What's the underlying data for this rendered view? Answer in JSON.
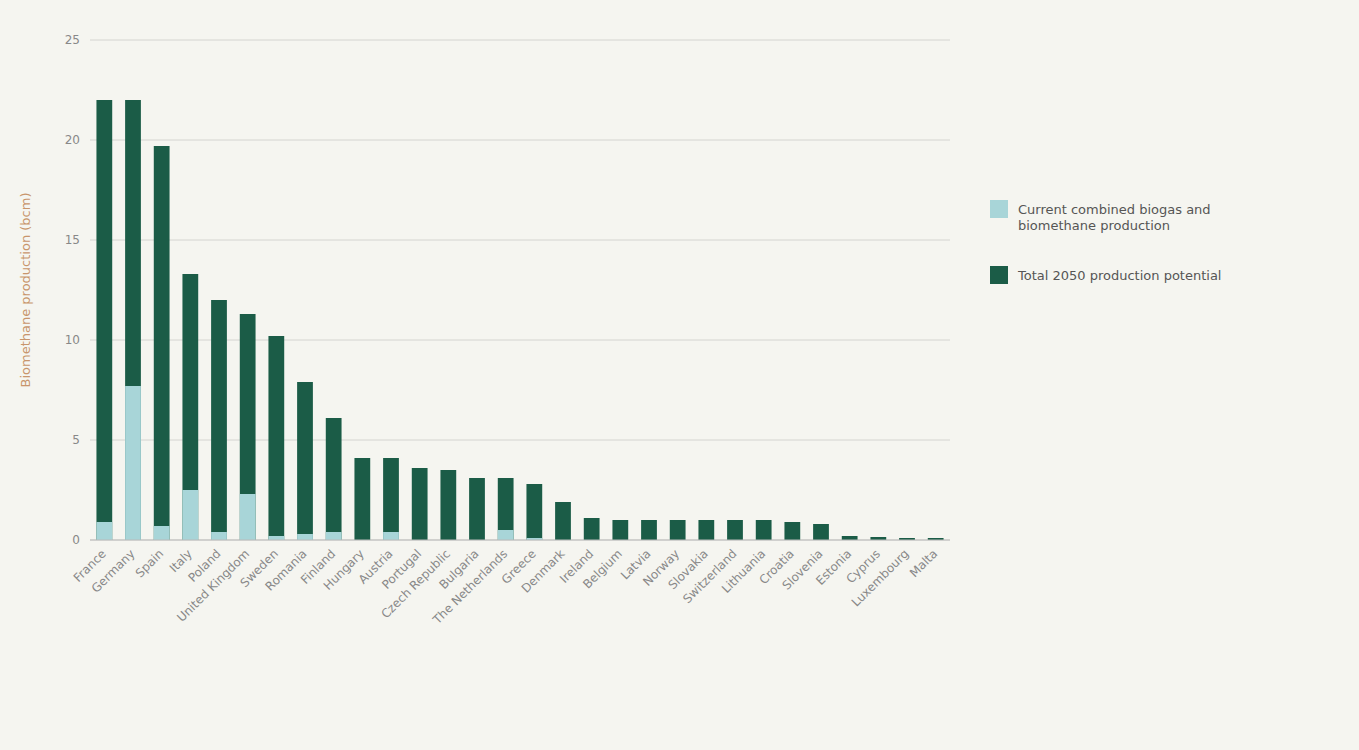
{
  "chart_data": {
    "type": "bar",
    "categories": [
      "France",
      "Germany",
      "Spain",
      "Italy",
      "Poland",
      "United Kingdom",
      "Sweden",
      "Romania",
      "Finland",
      "Hungary",
      "Austria",
      "Portugal",
      "Czech Republic",
      "Bulgaria",
      "The Netherlands",
      "Greece",
      "Denmark",
      "Ireland",
      "Belgium",
      "Latvia",
      "Norway",
      "Slovakia",
      "Switzerland",
      "Lithuania",
      "Croatia",
      "Slovenia",
      "Estonia",
      "Cyprus",
      "Luxembourg",
      "Malta"
    ],
    "series": [
      {
        "name": "Current combined biogas and\nbiomethane production",
        "color": "#a8d5d8",
        "values": [
          0.9,
          7.7,
          0.7,
          2.5,
          0.4,
          2.3,
          0.2,
          0.3,
          0.4,
          0.0,
          0.4,
          0.0,
          0.0,
          0.0,
          0.5,
          0.1,
          0.0,
          0.0,
          0.0,
          0.0,
          0.0,
          0.0,
          0.0,
          0.0,
          0.0,
          0.0,
          0.0,
          0.0,
          0.0,
          0.0
        ]
      },
      {
        "name": "Total 2050 production potential",
        "color": "#1b5c47",
        "values": [
          22.0,
          22.0,
          19.7,
          13.3,
          12.0,
          11.3,
          10.2,
          7.9,
          6.1,
          4.1,
          4.1,
          3.6,
          3.5,
          3.1,
          3.1,
          2.8,
          1.9,
          1.1,
          1.0,
          1.0,
          1.0,
          1.0,
          1.0,
          1.0,
          0.9,
          0.8,
          0.2,
          0.15,
          0.1,
          0.1
        ]
      }
    ],
    "stacked": false,
    "y_label": "Biomethane production (bcm)",
    "ylim": [
      0,
      25
    ],
    "yticks": [
      0,
      5,
      10,
      15,
      20,
      25
    ],
    "grid": true,
    "legend": "right"
  }
}
